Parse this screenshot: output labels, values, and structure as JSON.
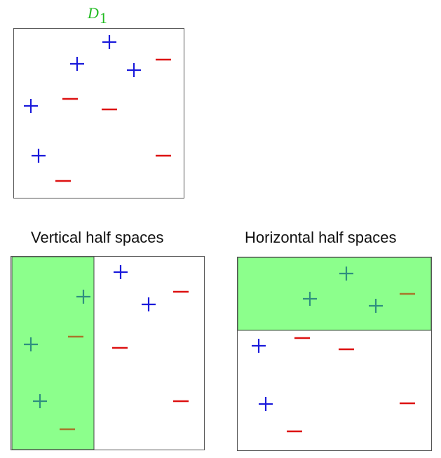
{
  "panel_top": {
    "label_var": "D",
    "label_sub": "1",
    "points": [
      {
        "type": "plus",
        "color": "#1a1adb"
      },
      {
        "type": "plus",
        "color": "#1a1adb"
      },
      {
        "type": "plus",
        "color": "#1a1adb"
      },
      {
        "type": "plus",
        "color": "#1a1adb"
      },
      {
        "type": "plus",
        "color": "#1a1adb"
      },
      {
        "type": "minus",
        "color": "#dd1111"
      },
      {
        "type": "minus",
        "color": "#dd1111"
      },
      {
        "type": "minus",
        "color": "#dd1111"
      },
      {
        "type": "minus",
        "color": "#dd1111"
      },
      {
        "type": "minus",
        "color": "#dd1111"
      }
    ]
  },
  "panel_vertical": {
    "title": "Vertical half spaces",
    "region_color": "#8cff8c"
  },
  "panel_horizontal": {
    "title": "Horizontal half spaces",
    "region_color": "#8cff8c"
  },
  "colors": {
    "plus": "#1a1adb",
    "minus": "#dd1111",
    "plus_in_region": "#2f8f7f",
    "minus_in_region": "#a8762a"
  }
}
